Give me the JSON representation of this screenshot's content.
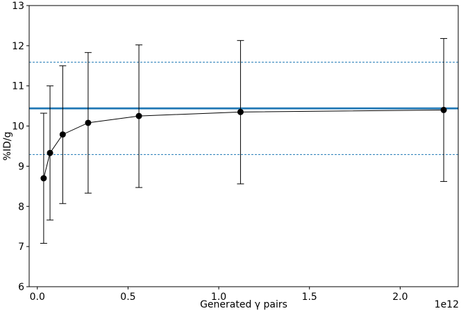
{
  "chart_data": {
    "type": "scatter",
    "title": "",
    "xlabel": "Generated γ pairs",
    "ylabel": "%ID/g",
    "x_offset_label": "1e12",
    "xlim": [
      -0.045,
      2.32
    ],
    "ylim": [
      6,
      13
    ],
    "x_ticks": [
      0.0,
      0.5,
      1.0,
      1.5,
      2.0
    ],
    "x_tick_labels": [
      "0.0",
      "0.5",
      "1.0",
      "1.5",
      "2.0"
    ],
    "y_ticks": [
      6,
      7,
      8,
      9,
      10,
      11,
      12,
      13
    ],
    "y_tick_labels": [
      "6",
      "7",
      "8",
      "9",
      "10",
      "11",
      "12",
      "13"
    ],
    "grid": false,
    "series": [
      {
        "x": [
          0.035,
          0.07,
          0.14,
          0.28,
          0.56,
          1.12,
          2.24
        ],
        "y": [
          8.7,
          9.33,
          9.79,
          10.08,
          10.25,
          10.35,
          10.4
        ],
        "yerr_low": [
          7.08,
          7.66,
          8.07,
          8.33,
          8.47,
          8.56,
          8.62
        ],
        "yerr_high": [
          10.32,
          11.0,
          11.5,
          11.83,
          12.02,
          12.13,
          12.18
        ],
        "color": "#000000"
      }
    ],
    "reference_lines": [
      {
        "y": 10.44,
        "style": "solid",
        "color": "#1f77b4"
      },
      {
        "y": 11.59,
        "style": "dashed",
        "color": "#1f77b4"
      },
      {
        "y": 9.29,
        "style": "dashed",
        "color": "#1f77b4"
      }
    ]
  }
}
